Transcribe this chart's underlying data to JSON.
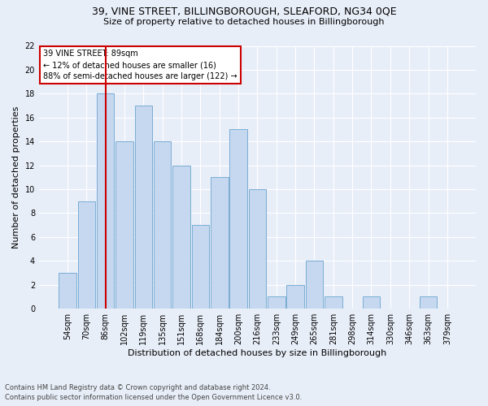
{
  "title1": "39, VINE STREET, BILLINGBOROUGH, SLEAFORD, NG34 0QE",
  "title2": "Size of property relative to detached houses in Billingborough",
  "xlabel": "Distribution of detached houses by size in Billingborough",
  "ylabel": "Number of detached properties",
  "footnote1": "Contains HM Land Registry data © Crown copyright and database right 2024.",
  "footnote2": "Contains public sector information licensed under the Open Government Licence v3.0.",
  "categories": [
    "54sqm",
    "70sqm",
    "86sqm",
    "102sqm",
    "119sqm",
    "135sqm",
    "151sqm",
    "168sqm",
    "184sqm",
    "200sqm",
    "216sqm",
    "233sqm",
    "249sqm",
    "265sqm",
    "281sqm",
    "298sqm",
    "314sqm",
    "330sqm",
    "346sqm",
    "363sqm",
    "379sqm"
  ],
  "values": [
    3,
    9,
    18,
    14,
    17,
    14,
    12,
    7,
    11,
    15,
    10,
    1,
    2,
    4,
    1,
    0,
    1,
    0,
    0,
    1,
    0
  ],
  "bar_color": "#c5d8f0",
  "bar_edge_color": "#7aadd4",
  "vline_x_index": 2,
  "vline_color": "#cc0000",
  "annotation_title": "39 VINE STREET: 89sqm",
  "annotation_line1": "← 12% of detached houses are smaller (16)",
  "annotation_line2": "88% of semi-detached houses are larger (122) →",
  "annotation_box_color": "#ffffff",
  "annotation_box_edge": "#cc0000",
  "ylim": [
    0,
    22
  ],
  "yticks": [
    0,
    2,
    4,
    6,
    8,
    10,
    12,
    14,
    16,
    18,
    20,
    22
  ],
  "bg_color": "#e8eef8",
  "axes_bg_color": "#e8eef8",
  "grid_color": "#ffffff",
  "tick_fontsize": 7,
  "ylabel_fontsize": 8,
  "xlabel_fontsize": 8,
  "title1_fontsize": 9,
  "title2_fontsize": 8,
  "footnote_fontsize": 6
}
